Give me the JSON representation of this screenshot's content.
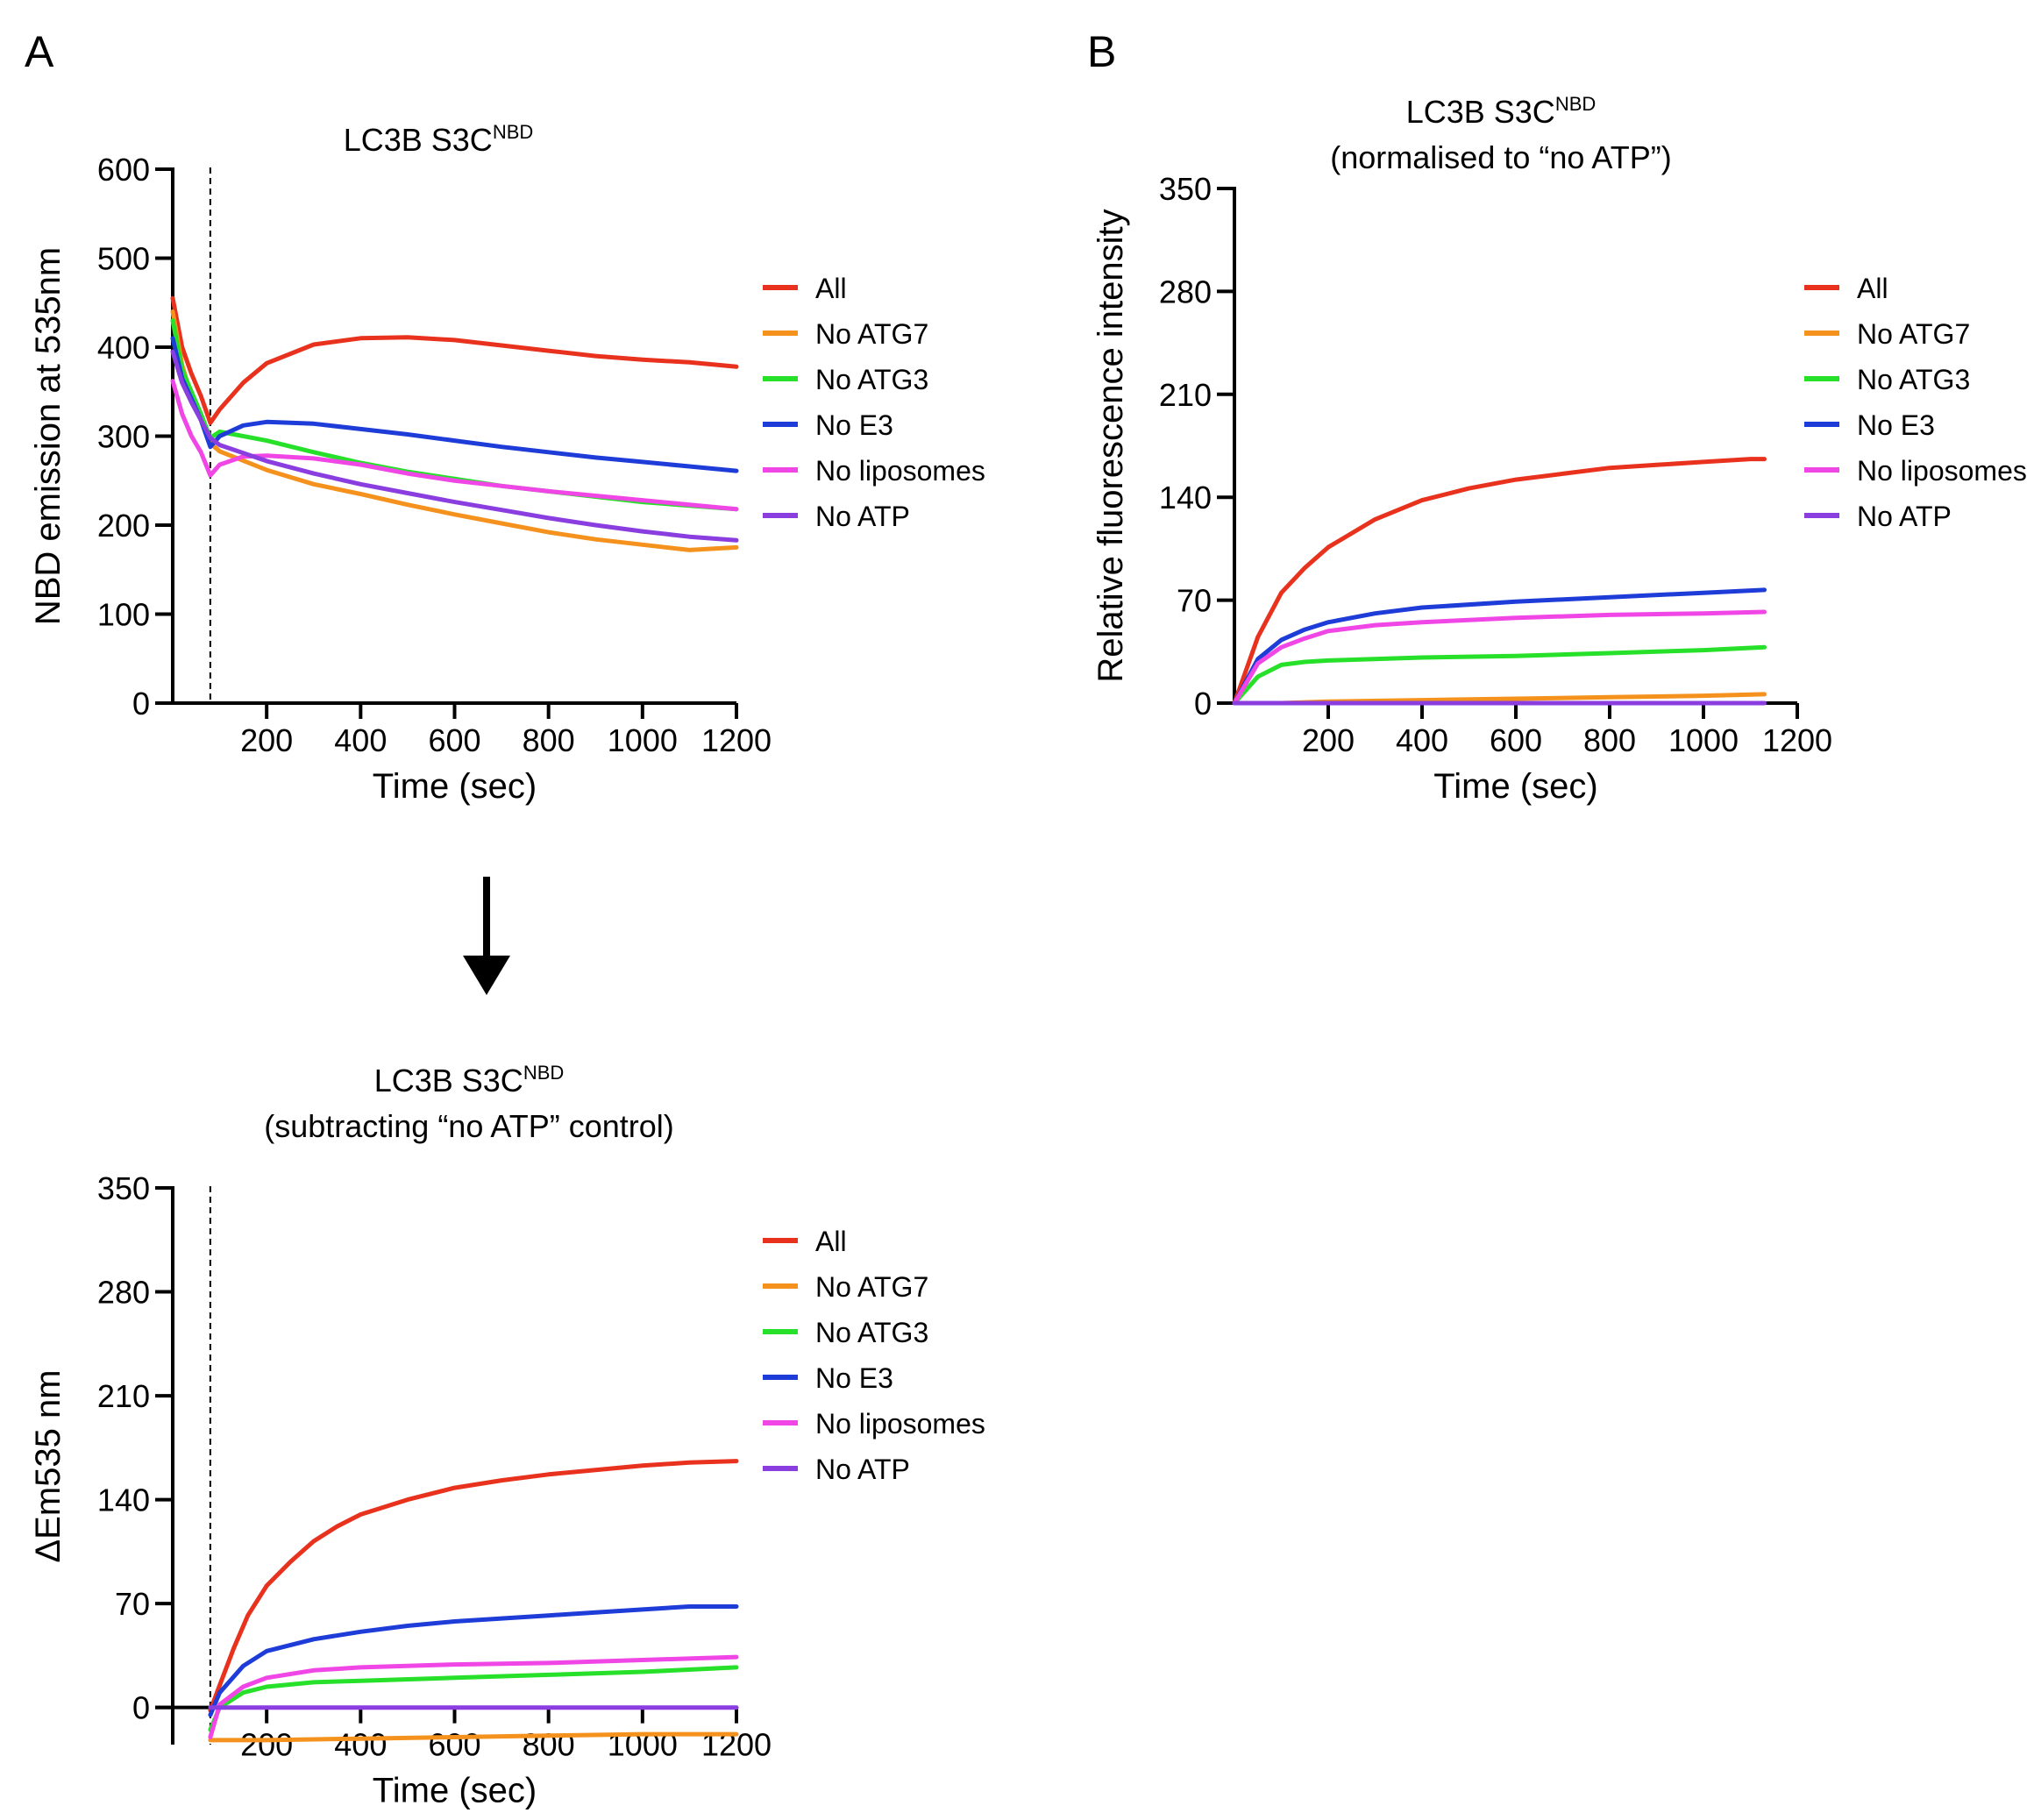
{
  "panel_labels": {
    "a": "A",
    "b": "B"
  },
  "arrow_icon": "down-arrow-icon",
  "charts": [
    {
      "id": "a1",
      "title": {
        "main": "LC3B S3C",
        "sup": "NBD",
        "line2": ""
      },
      "ylabel": "NBD emission at 535nm",
      "xlabel": "Time (sec)",
      "y_ticks": [
        "0",
        "100",
        "200",
        "300",
        "400",
        "500",
        "600"
      ],
      "x_ticks": [
        "200",
        "400",
        "600",
        "800",
        "1000",
        "1200"
      ],
      "legend": [
        "All",
        "No ATG7",
        "No ATG3",
        "No E3",
        "No liposomes",
        "No ATP"
      ]
    },
    {
      "id": "b",
      "title": {
        "main": "LC3B S3C",
        "sup": "NBD",
        "line2": "(normalised to “no ATP”)"
      },
      "ylabel": "Relative fluorescence intensity",
      "xlabel": "Time (sec)",
      "y_ticks": [
        "0",
        "70",
        "140",
        "210",
        "280",
        "350"
      ],
      "x_ticks": [
        "200",
        "400",
        "600",
        "800",
        "1000",
        "1200"
      ],
      "legend": [
        "All",
        "No ATG7",
        "No ATG3",
        "No E3",
        "No liposomes",
        "No ATP"
      ]
    },
    {
      "id": "a2",
      "title": {
        "main": "LC3B S3C",
        "sup": "NBD",
        "line2": "(subtracting “no ATP” control)"
      },
      "ylabel": "ΔEm535 nm",
      "xlabel": "Time (sec)",
      "y_ticks": [
        "0",
        "70",
        "140",
        "210",
        "280",
        "350"
      ],
      "x_ticks": [
        "200",
        "400",
        "600",
        "800",
        "1000",
        "1200"
      ],
      "legend": [
        "All",
        "No ATG7",
        "No ATG3",
        "No E3",
        "No liposomes",
        "No ATP"
      ]
    }
  ],
  "chart_data": [
    {
      "id": "a1",
      "type": "line",
      "title": "LC3B S3CNBD",
      "xlabel": "Time (sec)",
      "ylabel": "NBD emission at 535nm",
      "xlim": [
        0,
        1200
      ],
      "ylim": [
        0,
        600
      ],
      "marker_line_x": 80,
      "series": [
        {
          "name": "All",
          "color": "#e8321e",
          "points": [
            [
              0,
              455
            ],
            [
              20,
              400
            ],
            [
              40,
              370
            ],
            [
              60,
              345
            ],
            [
              80,
              315
            ],
            [
              100,
              330
            ],
            [
              150,
              360
            ],
            [
              200,
              382
            ],
            [
              300,
              403
            ],
            [
              400,
              410
            ],
            [
              500,
              411
            ],
            [
              600,
              408
            ],
            [
              700,
              402
            ],
            [
              800,
              396
            ],
            [
              900,
              390
            ],
            [
              1000,
              386
            ],
            [
              1100,
              383
            ],
            [
              1200,
              378
            ]
          ]
        },
        {
          "name": "No ATG7",
          "color": "#f5921e",
          "points": [
            [
              0,
              440
            ],
            [
              20,
              380
            ],
            [
              40,
              345
            ],
            [
              60,
              318
            ],
            [
              80,
              292
            ],
            [
              100,
              283
            ],
            [
              200,
              262
            ],
            [
              300,
              246
            ],
            [
              400,
              235
            ],
            [
              500,
              223
            ],
            [
              600,
              212
            ],
            [
              700,
              202
            ],
            [
              800,
              192
            ],
            [
              900,
              184
            ],
            [
              1000,
              178
            ],
            [
              1100,
              172
            ],
            [
              1200,
              175
            ]
          ]
        },
        {
          "name": "No ATG3",
          "color": "#27e02a",
          "points": [
            [
              0,
              430
            ],
            [
              20,
              375
            ],
            [
              40,
              350
            ],
            [
              60,
              325
            ],
            [
              80,
              298
            ],
            [
              100,
              305
            ],
            [
              200,
              295
            ],
            [
              300,
              282
            ],
            [
              400,
              270
            ],
            [
              500,
              260
            ],
            [
              600,
              252
            ],
            [
              700,
              244
            ],
            [
              800,
              238
            ],
            [
              900,
              232
            ],
            [
              1000,
              226
            ],
            [
              1100,
              222
            ],
            [
              1200,
              218
            ]
          ]
        },
        {
          "name": "No E3",
          "color": "#1e3cd8",
          "points": [
            [
              0,
              410
            ],
            [
              20,
              365
            ],
            [
              40,
              342
            ],
            [
              60,
              318
            ],
            [
              80,
              288
            ],
            [
              100,
              300
            ],
            [
              150,
              312
            ],
            [
              200,
              316
            ],
            [
              300,
              314
            ],
            [
              400,
              308
            ],
            [
              500,
              302
            ],
            [
              600,
              295
            ],
            [
              700,
              288
            ],
            [
              800,
              282
            ],
            [
              900,
              276
            ],
            [
              1000,
              271
            ],
            [
              1100,
              266
            ],
            [
              1200,
              261
            ]
          ]
        },
        {
          "name": "No liposomes",
          "color": "#f046e6",
          "points": [
            [
              0,
              362
            ],
            [
              20,
              325
            ],
            [
              40,
              300
            ],
            [
              60,
              282
            ],
            [
              80,
              256
            ],
            [
              100,
              268
            ],
            [
              150,
              277
            ],
            [
              200,
              278
            ],
            [
              300,
              275
            ],
            [
              400,
              268
            ],
            [
              500,
              258
            ],
            [
              600,
              250
            ],
            [
              700,
              244
            ],
            [
              800,
              238
            ],
            [
              900,
              233
            ],
            [
              1000,
              228
            ],
            [
              1100,
              223
            ],
            [
              1200,
              218
            ]
          ]
        },
        {
          "name": "No ATP",
          "color": "#8a3ee0",
          "points": [
            [
              0,
              395
            ],
            [
              20,
              360
            ],
            [
              40,
              338
            ],
            [
              60,
              318
            ],
            [
              80,
              298
            ],
            [
              100,
              290
            ],
            [
              200,
              272
            ],
            [
              300,
              258
            ],
            [
              400,
              246
            ],
            [
              500,
              236
            ],
            [
              600,
              226
            ],
            [
              700,
              217
            ],
            [
              800,
              208
            ],
            [
              900,
              200
            ],
            [
              1000,
              193
            ],
            [
              1100,
              187
            ],
            [
              1200,
              183
            ]
          ]
        }
      ]
    },
    {
      "id": "b",
      "type": "line",
      "title": "LC3B S3CNBD (normalised to “no ATP”)",
      "xlabel": "Time (sec)",
      "ylabel": "Relative fluorescence intensity",
      "xlim": [
        0,
        1200
      ],
      "ylim": [
        0,
        350
      ],
      "series": [
        {
          "name": "All",
          "color": "#e8321e",
          "points": [
            [
              0,
              0
            ],
            [
              50,
              45
            ],
            [
              100,
              75
            ],
            [
              150,
              92
            ],
            [
              200,
              106
            ],
            [
              300,
              125
            ],
            [
              400,
              138
            ],
            [
              500,
              146
            ],
            [
              600,
              152
            ],
            [
              700,
              156
            ],
            [
              800,
              160
            ],
            [
              900,
              162
            ],
            [
              1000,
              164
            ],
            [
              1100,
              166
            ],
            [
              1130,
              166
            ]
          ]
        },
        {
          "name": "No ATG7",
          "color": "#f5921e",
          "points": [
            [
              0,
              0
            ],
            [
              100,
              0
            ],
            [
              200,
              1
            ],
            [
              400,
              2
            ],
            [
              600,
              3
            ],
            [
              800,
              4
            ],
            [
              1000,
              5
            ],
            [
              1130,
              6
            ]
          ]
        },
        {
          "name": "No ATG3",
          "color": "#27e02a",
          "points": [
            [
              0,
              0
            ],
            [
              50,
              18
            ],
            [
              100,
              26
            ],
            [
              150,
              28
            ],
            [
              200,
              29
            ],
            [
              400,
              31
            ],
            [
              600,
              32
            ],
            [
              800,
              34
            ],
            [
              1000,
              36
            ],
            [
              1130,
              38
            ]
          ]
        },
        {
          "name": "No E3",
          "color": "#1e3cd8",
          "points": [
            [
              0,
              0
            ],
            [
              50,
              30
            ],
            [
              100,
              43
            ],
            [
              150,
              50
            ],
            [
              200,
              55
            ],
            [
              300,
              61
            ],
            [
              400,
              65
            ],
            [
              600,
              69
            ],
            [
              800,
              72
            ],
            [
              1000,
              75
            ],
            [
              1130,
              77
            ]
          ]
        },
        {
          "name": "No liposomes",
          "color": "#f046e6",
          "points": [
            [
              0,
              0
            ],
            [
              50,
              27
            ],
            [
              100,
              38
            ],
            [
              150,
              44
            ],
            [
              200,
              49
            ],
            [
              300,
              53
            ],
            [
              400,
              55
            ],
            [
              600,
              58
            ],
            [
              800,
              60
            ],
            [
              1000,
              61
            ],
            [
              1130,
              62
            ]
          ]
        },
        {
          "name": "No ATP",
          "color": "#8a3ee0",
          "points": [
            [
              0,
              0
            ],
            [
              1130,
              0
            ]
          ]
        }
      ]
    },
    {
      "id": "a2",
      "type": "line",
      "title": "LC3B S3CNBD (subtracting “no ATP” control)",
      "xlabel": "Time (sec)",
      "ylabel": "ΔEm535 nm",
      "xlim": [
        0,
        1200
      ],
      "ylim": [
        -25,
        350
      ],
      "marker_line_x": 80,
      "series": [
        {
          "name": "All",
          "color": "#e8321e",
          "points": [
            [
              80,
              -2
            ],
            [
              100,
              15
            ],
            [
              130,
              40
            ],
            [
              160,
              62
            ],
            [
              200,
              82
            ],
            [
              250,
              98
            ],
            [
              300,
              112
            ],
            [
              350,
              122
            ],
            [
              400,
              130
            ],
            [
              500,
              140
            ],
            [
              600,
              148
            ],
            [
              700,
              153
            ],
            [
              800,
              157
            ],
            [
              900,
              160
            ],
            [
              1000,
              163
            ],
            [
              1100,
              165
            ],
            [
              1200,
              166
            ]
          ]
        },
        {
          "name": "No ATG7",
          "color": "#f5921e",
          "points": [
            [
              80,
              -22
            ],
            [
              200,
              -22
            ],
            [
              400,
              -21
            ],
            [
              600,
              -20
            ],
            [
              800,
              -19
            ],
            [
              1000,
              -18
            ],
            [
              1200,
              -18
            ]
          ]
        },
        {
          "name": "No ATG3",
          "color": "#27e02a",
          "points": [
            [
              80,
              -15
            ],
            [
              100,
              0
            ],
            [
              150,
              10
            ],
            [
              200,
              14
            ],
            [
              300,
              17
            ],
            [
              400,
              18
            ],
            [
              600,
              20
            ],
            [
              800,
              22
            ],
            [
              1000,
              24
            ],
            [
              1200,
              27
            ]
          ]
        },
        {
          "name": "No E3",
          "color": "#1e3cd8",
          "points": [
            [
              80,
              -5
            ],
            [
              100,
              10
            ],
            [
              150,
              28
            ],
            [
              200,
              38
            ],
            [
              300,
              46
            ],
            [
              400,
              51
            ],
            [
              500,
              55
            ],
            [
              600,
              58
            ],
            [
              700,
              60
            ],
            [
              800,
              62
            ],
            [
              900,
              64
            ],
            [
              1000,
              66
            ],
            [
              1100,
              68
            ],
            [
              1200,
              68
            ]
          ]
        },
        {
          "name": "No liposomes",
          "color": "#f046e6",
          "points": [
            [
              80,
              -20
            ],
            [
              100,
              2
            ],
            [
              150,
              14
            ],
            [
              200,
              20
            ],
            [
              300,
              25
            ],
            [
              400,
              27
            ],
            [
              600,
              29
            ],
            [
              800,
              30
            ],
            [
              1000,
              32
            ],
            [
              1200,
              34
            ]
          ]
        },
        {
          "name": "No ATP",
          "color": "#8a3ee0",
          "points": [
            [
              80,
              0
            ],
            [
              1200,
              0
            ]
          ]
        }
      ]
    }
  ]
}
